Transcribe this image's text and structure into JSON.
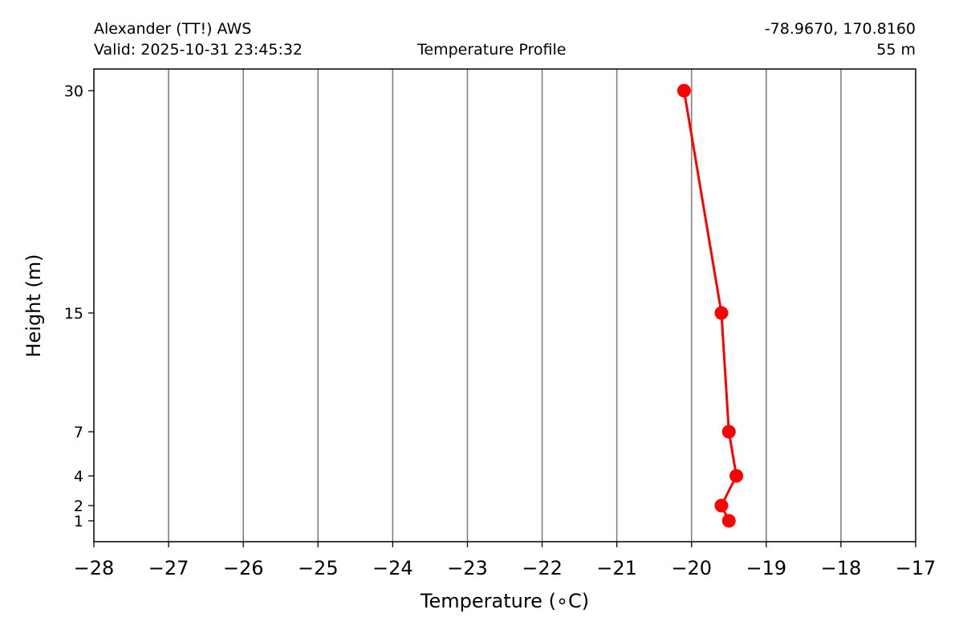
{
  "header": {
    "station": "Alexander (TT!) AWS",
    "valid": "Valid: 2025-10-31 23:45:32",
    "plot_title": "Temperature Profile",
    "coords": "-78.9670, 170.8160",
    "elevation": "55 m"
  },
  "chart_data": {
    "type": "line",
    "xlabel": "Temperature ($^\\circ$C)",
    "xlabel_display": "Temperature (∘C)",
    "ylabel": "Height (m)",
    "xlim": [
      -28,
      -17
    ],
    "x_ticks": [
      -28,
      -27,
      -26,
      -25,
      -24,
      -23,
      -22,
      -21,
      -20,
      -19,
      -18,
      -17
    ],
    "x_tick_labels": [
      "−28",
      "−27",
      "−26",
      "−25",
      "−24",
      "−23",
      "−22",
      "−21",
      "−20",
      "−19",
      "−18",
      "−17"
    ],
    "y_ticks": [
      1,
      2,
      4,
      7,
      15,
      30
    ],
    "y_tick_labels": [
      "1",
      "2",
      "4",
      "7",
      "15",
      "30"
    ],
    "grid": "vertical",
    "series": [
      {
        "color": "#ff0000",
        "points": [
          {
            "height": 1,
            "temperature": -19.5
          },
          {
            "height": 2,
            "temperature": -19.6
          },
          {
            "height": 4,
            "temperature": -19.4
          },
          {
            "height": 7,
            "temperature": -19.5
          },
          {
            "height": 15,
            "temperature": -19.6
          },
          {
            "height": 30,
            "temperature": -20.1
          }
        ]
      }
    ],
    "colors": {
      "line": "#ff0000",
      "grid": "#808080",
      "axes": "#000000"
    }
  }
}
